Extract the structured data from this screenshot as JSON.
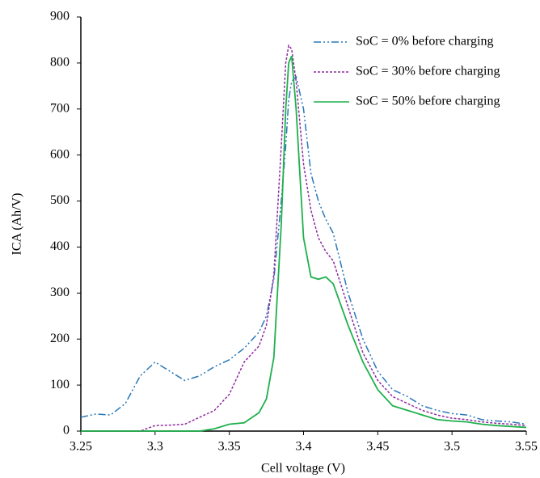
{
  "chart_data": {
    "type": "line",
    "x_label": "Cell voltage (V)",
    "y_label": "ICA (Ah/V)",
    "x": [
      3.25,
      3.26,
      3.27,
      3.28,
      3.29,
      3.3,
      3.31,
      3.32,
      3.33,
      3.34,
      3.35,
      3.36,
      3.37,
      3.375,
      3.38,
      3.385,
      3.388,
      3.39,
      3.392,
      3.395,
      3.4,
      3.405,
      3.41,
      3.415,
      3.42,
      3.43,
      3.44,
      3.45,
      3.46,
      3.47,
      3.48,
      3.49,
      3.5,
      3.51,
      3.52,
      3.53,
      3.54,
      3.55
    ],
    "series": [
      {
        "name": "SoC = 0% before charging",
        "color": "#2878b8",
        "dash": "dash-dot-dot",
        "values": [
          30,
          37,
          35,
          60,
          120,
          150,
          130,
          110,
          120,
          140,
          155,
          180,
          215,
          250,
          330,
          500,
          620,
          720,
          760,
          770,
          700,
          560,
          500,
          460,
          430,
          300,
          200,
          130,
          90,
          75,
          55,
          45,
          38,
          35,
          25,
          22,
          20,
          15
        ]
      },
      {
        "name": "SoC = 30% before charging",
        "color": "#8e2c9e",
        "dash": "dotted",
        "values": [
          0,
          0,
          0,
          0,
          0,
          12,
          13,
          15,
          30,
          45,
          80,
          150,
          185,
          230,
          340,
          620,
          800,
          838,
          830,
          760,
          580,
          480,
          420,
          390,
          370,
          270,
          170,
          110,
          75,
          60,
          45,
          35,
          28,
          25,
          20,
          17,
          15,
          12
        ]
      },
      {
        "name": "SoC = 50% before charging",
        "color": "#1fb04c",
        "dash": "solid",
        "values": [
          0,
          0,
          0,
          0,
          0,
          0,
          0,
          0,
          0,
          5,
          15,
          18,
          40,
          70,
          160,
          450,
          700,
          800,
          815,
          700,
          420,
          335,
          330,
          335,
          320,
          230,
          150,
          90,
          55,
          45,
          35,
          25,
          22,
          20,
          15,
          12,
          10,
          8
        ]
      }
    ],
    "xlim": [
      3.25,
      3.55
    ],
    "xticks": [
      3.25,
      3.3,
      3.35,
      3.4,
      3.45,
      3.5,
      3.55
    ],
    "ylim": [
      0,
      900
    ],
    "yticks": [
      0,
      100,
      200,
      300,
      400,
      500,
      600,
      700,
      800,
      900
    ],
    "grid": false,
    "legend": "upper right"
  }
}
